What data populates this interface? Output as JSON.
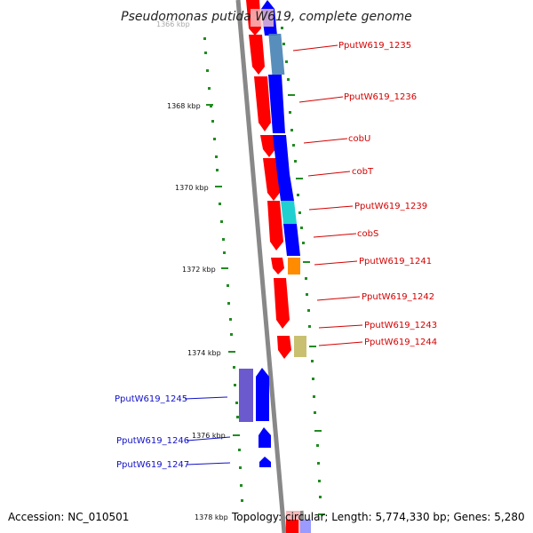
{
  "title": "Pseudomonas putida W619, complete genome",
  "scale_labels": {
    "top_partial": "1366 kbp",
    "k1368": "1368 kbp",
    "k1370": "1370 kbp",
    "k1372": "1372 kbp",
    "k1374": "1374 kbp",
    "k1376": "1376 kbp",
    "k1378": "1378 kbp"
  },
  "genes_right": [
    "PputW619_1235",
    "PputW619_1236",
    "cobU",
    "cobT",
    "PputW619_1239",
    "cobS",
    "PputW619_1241",
    "PputW619_1242",
    "PputW619_1243",
    "PputW619_1244"
  ],
  "genes_left": [
    "PputW619_1245",
    "PputW619_1246",
    "PputW619_1247"
  ],
  "footer": {
    "accession": "Accession: NC_010501",
    "topology": "Topology: circular; Length: 5,774,330 bp; Genes: 5,280"
  },
  "colors": {
    "forward_strand": "#ff0000",
    "reverse_strand": "#0000ff",
    "backbone": "#888888",
    "dots": "#228b22",
    "cyan_gene": "#20d0d0",
    "orange_gene": "#ff8c00",
    "olive_gene": "#c8c070",
    "steel_gene": "#4682b4",
    "purple_gene": "#6a5acd"
  }
}
